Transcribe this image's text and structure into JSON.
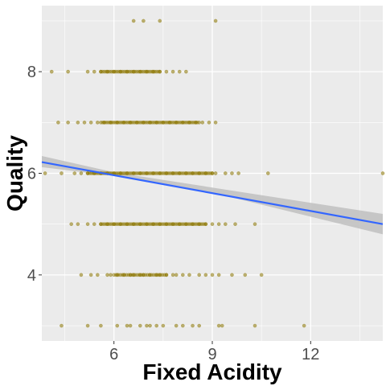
{
  "chart_data": {
    "type": "scatter",
    "title": "",
    "xlabel": "Fixed Acidity",
    "ylabel": "Quality",
    "xlim": [
      3.8,
      14.2
    ],
    "ylim": [
      2.7,
      9.3
    ],
    "x_ticks": [
      6,
      9,
      12
    ],
    "x_tick_labels": [
      "6",
      "9",
      "12"
    ],
    "y_ticks": [
      4,
      6,
      8
    ],
    "y_tick_labels": [
      "4",
      "6",
      "8"
    ],
    "grid": true,
    "legend": "none",
    "colors": {
      "panel_background": "#ebebeb",
      "grid_major": "#ffffff",
      "points": "#8b7500",
      "trend_line": "#3366ff",
      "confidence_band": "#c0c0c0"
    },
    "series": [
      {
        "type": "scatter",
        "x": [
          4.4,
          5.2,
          5.6,
          6.1,
          6.4,
          6.5,
          6.8,
          7.0,
          7.1,
          7.3,
          7.5,
          7.9,
          8.1,
          8.4,
          8.6,
          9.2,
          9.3,
          10.3,
          11.8,
          5.0,
          5.3,
          5.5,
          5.8,
          5.9,
          6.1,
          6.3,
          6.5,
          6.6,
          6.8,
          6.9,
          7.1,
          7.3,
          7.4,
          7.6,
          7.8,
          7.9,
          8.1,
          8.3,
          8.6,
          8.8,
          9.0,
          9.2,
          9.6,
          10.0,
          10.5,
          4.7,
          4.9,
          5.2,
          5.4,
          5.6,
          5.8,
          6.0,
          6.2,
          6.4,
          6.6,
          6.8,
          7.0,
          7.2,
          7.4,
          7.6,
          7.8,
          8.0,
          8.2,
          8.4,
          8.6,
          8.8,
          9.0,
          9.2,
          9.4,
          9.7,
          10.3,
          3.9,
          4.4,
          4.8,
          5.0,
          5.2,
          5.4,
          5.6,
          5.8,
          6.0,
          6.2,
          6.4,
          6.6,
          6.8,
          7.0,
          7.2,
          7.4,
          7.6,
          7.8,
          8.0,
          8.2,
          8.4,
          8.6,
          8.8,
          9.0,
          9.1,
          9.4,
          9.6,
          9.8,
          10.7,
          14.2,
          4.3,
          4.6,
          4.9,
          5.1,
          5.3,
          5.5,
          5.7,
          5.9,
          6.1,
          6.3,
          6.5,
          6.7,
          6.9,
          7.1,
          7.3,
          7.5,
          7.7,
          7.9,
          8.1,
          8.3,
          8.5,
          8.7,
          8.9,
          9.1,
          4.1,
          4.6,
          5.2,
          5.4,
          5.6,
          5.8,
          6.0,
          6.2,
          6.4,
          6.6,
          6.8,
          7.0,
          7.2,
          7.4,
          7.6,
          7.8,
          8.0,
          8.2,
          6.6,
          6.9,
          7.4,
          9.1
        ],
        "y": [
          3,
          3,
          3,
          3,
          3,
          3,
          3,
          3,
          3,
          3,
          3,
          3,
          3,
          3,
          3,
          3,
          3,
          3,
          3,
          4,
          4,
          4,
          4,
          4,
          4,
          4,
          4,
          4,
          4,
          4,
          4,
          4,
          4,
          4,
          4,
          4,
          4,
          4,
          4,
          4,
          4,
          4,
          4,
          4,
          4,
          5,
          5,
          5,
          5,
          5,
          5,
          5,
          5,
          5,
          5,
          5,
          5,
          5,
          5,
          5,
          5,
          5,
          5,
          5,
          5,
          5,
          5,
          5,
          5,
          5,
          5,
          6,
          6,
          6,
          6,
          6,
          6,
          6,
          6,
          6,
          6,
          6,
          6,
          6,
          6,
          6,
          6,
          6,
          6,
          6,
          6,
          6,
          6,
          6,
          6,
          6,
          6,
          6,
          6,
          6,
          6,
          7,
          7,
          7,
          7,
          7,
          7,
          7,
          7,
          7,
          7,
          7,
          7,
          7,
          7,
          7,
          7,
          7,
          7,
          7,
          7,
          7,
          7,
          7,
          7,
          8,
          8,
          8,
          8,
          8,
          8,
          8,
          8,
          8,
          8,
          8,
          8,
          8,
          8,
          8,
          8,
          8,
          8,
          9,
          9,
          9,
          9
        ]
      },
      {
        "type": "line",
        "x": [
          3.8,
          14.2
        ],
        "y": [
          6.22,
          5.0
        ]
      },
      {
        "type": "area",
        "x": [
          3.8,
          6.0,
          9.0,
          14.2
        ],
        "y_lower": [
          6.12,
          5.95,
          5.62,
          4.8
        ],
        "y_upper": [
          6.34,
          6.02,
          5.72,
          5.2
        ]
      }
    ]
  }
}
